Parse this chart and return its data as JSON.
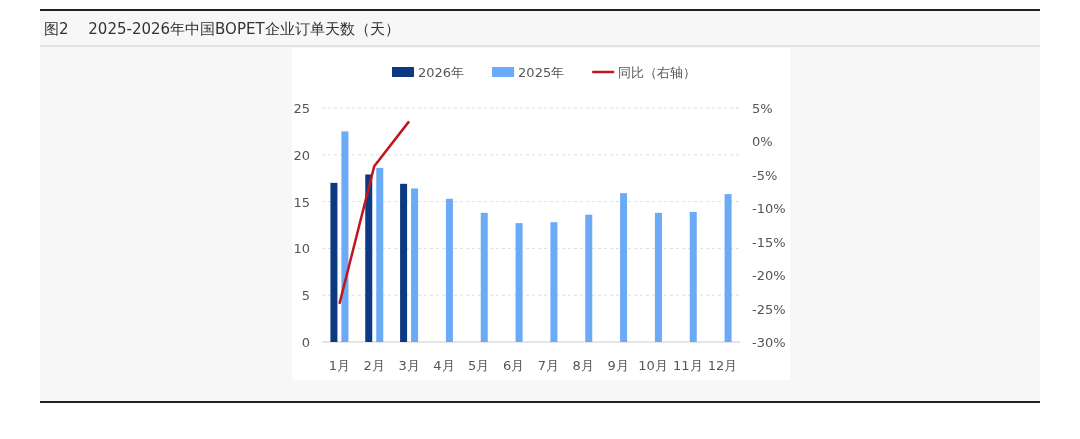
{
  "chart_data": {
    "type": "bar",
    "title": "图2　 2025-2026年中国BOPET企业订单天数（天）",
    "categories": [
      "1月",
      "2月",
      "3月",
      "4月",
      "5月",
      "6月",
      "7月",
      "8月",
      "9月",
      "10月",
      "11月",
      "12月"
    ],
    "series": [
      {
        "name": "2026年",
        "color": "#0b3a82",
        "values": [
          17.0,
          17.9,
          16.9,
          null,
          null,
          null,
          null,
          null,
          null,
          null,
          null,
          null
        ]
      },
      {
        "name": "2025年",
        "color": "#6aaaf7",
        "values": [
          22.5,
          18.6,
          16.4,
          15.3,
          13.8,
          12.7,
          12.8,
          13.6,
          15.9,
          13.8,
          13.9,
          15.8
        ]
      },
      {
        "name": "同比（右轴）",
        "type": "line",
        "axis": "y2",
        "color": "#c0161c",
        "values": [
          -24.3,
          -3.7,
          3.0,
          null,
          null,
          null,
          null,
          null,
          null,
          null,
          null,
          null
        ]
      }
    ],
    "ylim": [
      0,
      25
    ],
    "yticks": [
      0,
      5,
      10,
      15,
      20,
      25
    ],
    "y2lim": [
      -30,
      5
    ],
    "y2ticks": [
      {
        "value": -30,
        "label": "-30%"
      },
      {
        "value": -25,
        "label": "-25%"
      },
      {
        "value": -20,
        "label": "-20%"
      },
      {
        "value": -15,
        "label": "-15%"
      },
      {
        "value": -10,
        "label": "-10%"
      },
      {
        "value": -5,
        "label": "-5%"
      },
      {
        "value": 0,
        "label": "0%"
      },
      {
        "value": 5,
        "label": "5%"
      }
    ],
    "grid": "y",
    "legend": "top"
  }
}
